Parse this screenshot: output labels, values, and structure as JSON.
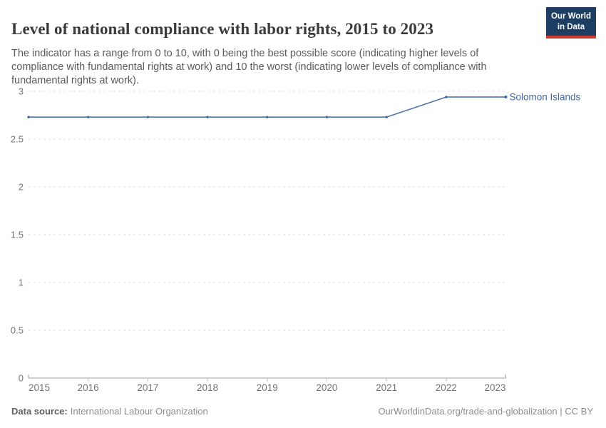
{
  "header": {
    "title": "Level of national compliance with labor rights, 2015 to 2023",
    "subtitle": "The indicator has a range from 0 to 10, with 0 being the best possible score (indicating higher levels of compliance with fundamental rights at work) and 10 the worst (indicating lower levels of compliance with fundamental rights at work).",
    "logo": {
      "line1": "Our World",
      "line2": "in Data",
      "bg_color": "#1d3d63",
      "stripe_color": "#cf3a31"
    }
  },
  "chart_data": {
    "type": "line",
    "title": "Level of national compliance with labor rights, 2015 to 2023",
    "xlabel": "",
    "ylabel": "",
    "xlim": [
      2015,
      2023
    ],
    "ylim": [
      0,
      3
    ],
    "x_ticks": [
      2015,
      2016,
      2017,
      2018,
      2019,
      2020,
      2021,
      2022,
      2023
    ],
    "x_tick_labels": [
      "2015",
      "2016",
      "2017",
      "2018",
      "2019",
      "2020",
      "2021",
      "2022",
      "2023"
    ],
    "y_ticks": [
      0,
      0.5,
      1,
      1.5,
      2,
      2.5,
      3
    ],
    "y_tick_labels": [
      "0",
      "0.5",
      "1",
      "1.5",
      "2",
      "2.5",
      "3"
    ],
    "grid": "dashed horizontal gridlines, solid baseline at 0",
    "legend": "end-of-line label",
    "series": [
      {
        "name": "Solomon Islands",
        "color": "#4268a3",
        "x": [
          2015,
          2016,
          2017,
          2018,
          2019,
          2020,
          2021,
          2022,
          2023
        ],
        "values": [
          2.73,
          2.73,
          2.73,
          2.73,
          2.73,
          2.73,
          2.73,
          2.94,
          2.94
        ]
      }
    ],
    "style_colors": {
      "gridline": "#dcdcdc",
      "axis_line": "#a0a0a0",
      "tick_mark": "#c2c2c2",
      "axis_text": "#737373"
    }
  },
  "footer": {
    "source_label": "Data source:",
    "source_value": "International Labour Organization",
    "right_text": "OurWorldinData.org/trade-and-globalization | CC BY"
  }
}
